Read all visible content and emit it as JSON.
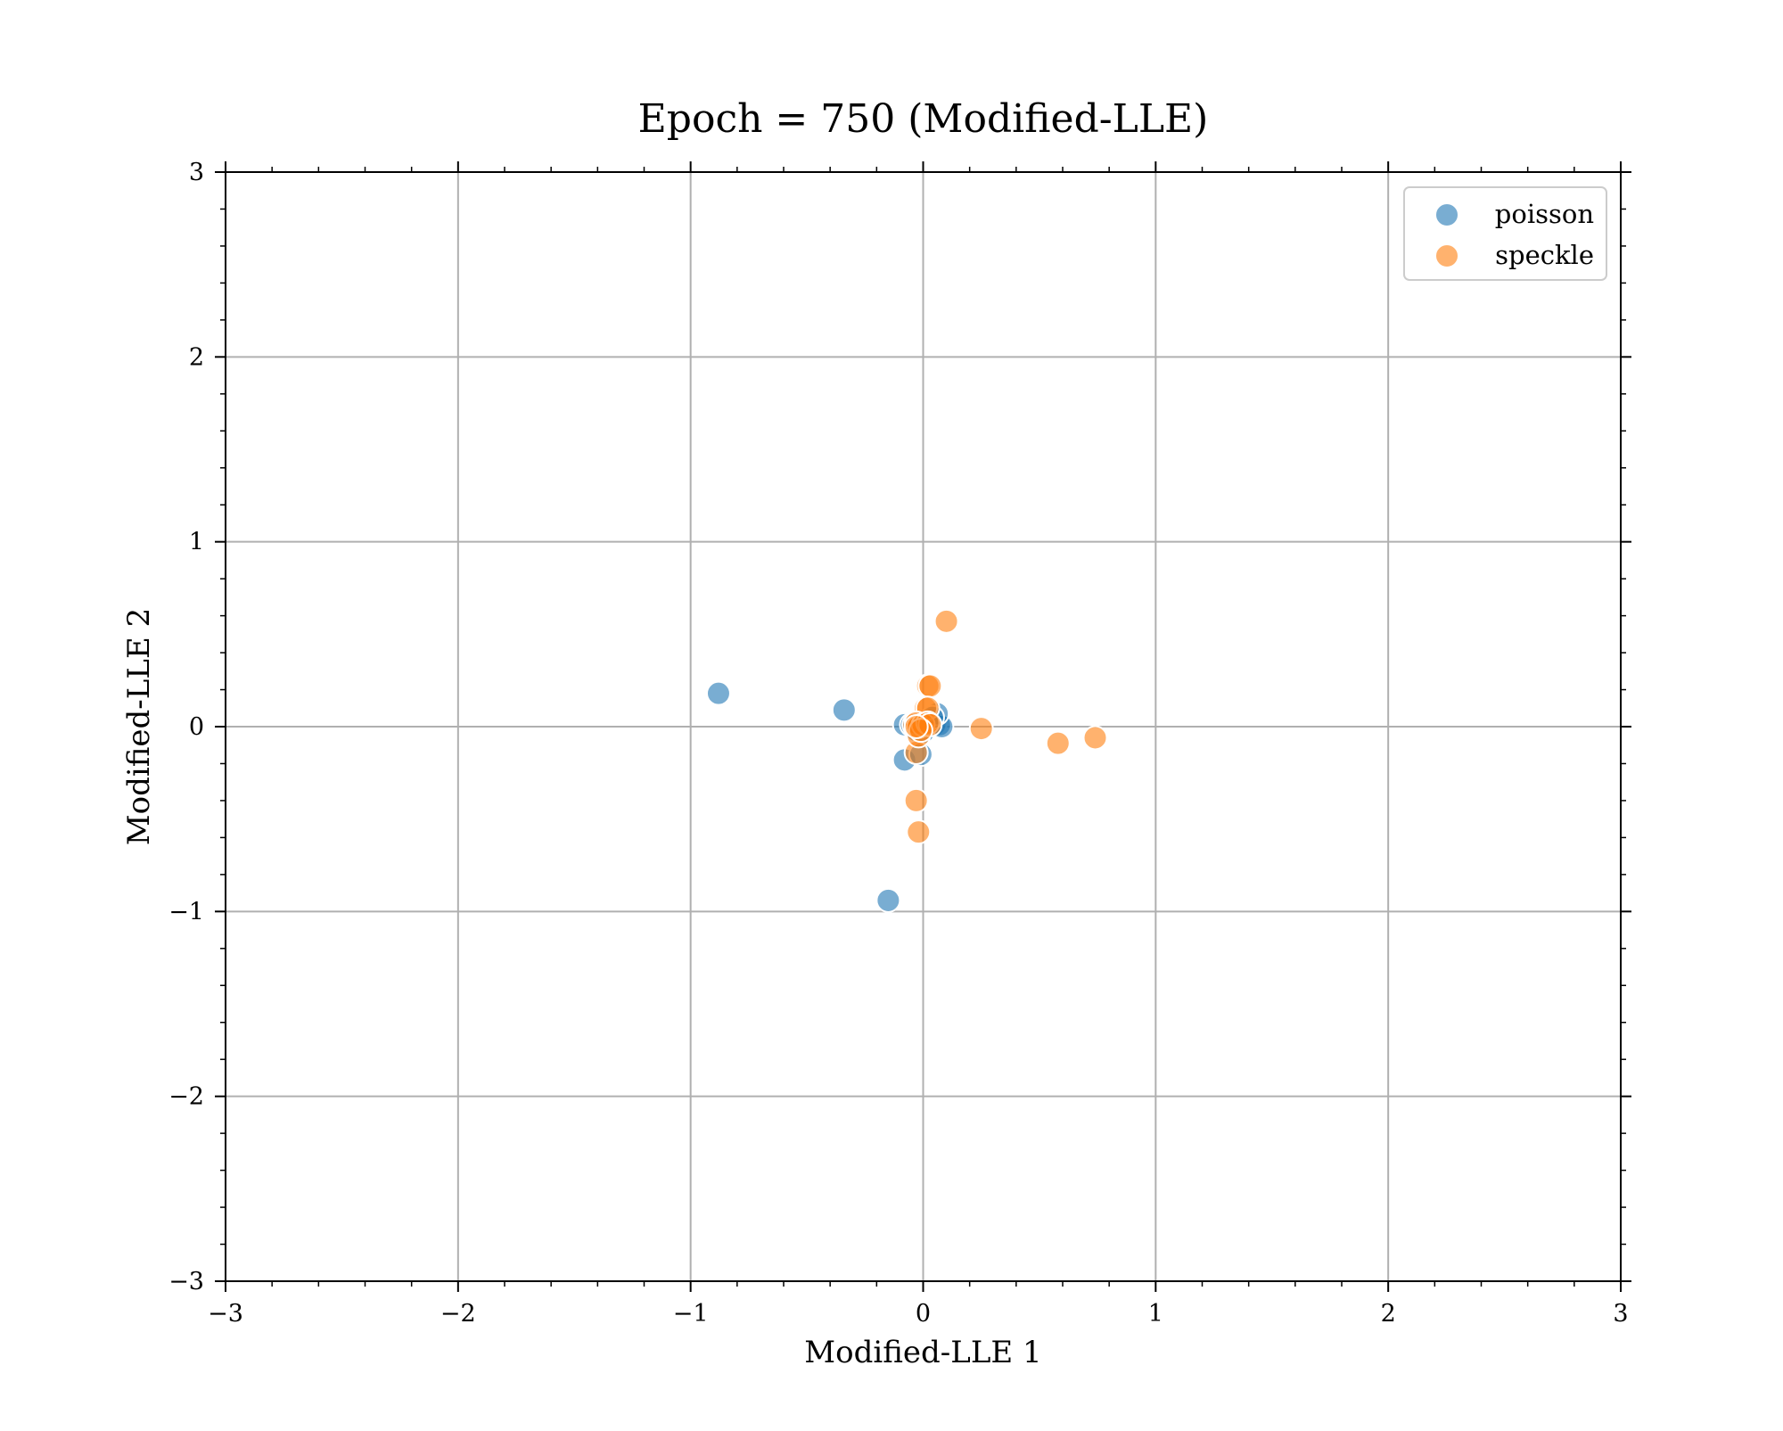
{
  "chart_data": {
    "type": "scatter",
    "title": "Epoch = 750 (Modified-LLE)",
    "xlabel": "Modified-LLE 1",
    "ylabel": "Modified-LLE 2",
    "xlim": [
      -3,
      3
    ],
    "ylim": [
      -3,
      3
    ],
    "xticks": [
      -3,
      -2,
      -1,
      0,
      1,
      2,
      3
    ],
    "yticks": [
      -3,
      -2,
      -1,
      0,
      1,
      2,
      3
    ],
    "xtick_labels": [
      "−3",
      "−2",
      "−1",
      "0",
      "1",
      "2",
      "3"
    ],
    "ytick_labels": [
      "−3",
      "−2",
      "−1",
      "0",
      "1",
      "2",
      "3"
    ],
    "grid": true,
    "legend_position": "top-right",
    "series": [
      {
        "name": "poisson",
        "color": "#1f77b4",
        "points": [
          [
            -0.88,
            0.18
          ],
          [
            -0.34,
            0.09
          ],
          [
            -0.15,
            -0.94
          ],
          [
            -0.08,
            -0.18
          ],
          [
            -0.01,
            -0.15
          ],
          [
            -0.08,
            0.01
          ],
          [
            -0.05,
            0.01
          ],
          [
            -0.02,
            0.02
          ],
          [
            0.02,
            0.01
          ],
          [
            0.05,
            0.01
          ],
          [
            0.07,
            0.01
          ],
          [
            0.08,
            0.0
          ],
          [
            0.06,
            0.07
          ],
          [
            0.04,
            0.05
          ],
          [
            -0.03,
            -0.02
          ],
          [
            0.0,
            -0.03
          ]
        ]
      },
      {
        "name": "speckle",
        "color": "#ff7f0e",
        "points": [
          [
            0.1,
            0.57
          ],
          [
            0.02,
            0.22
          ],
          [
            0.03,
            0.22
          ],
          [
            0.01,
            0.1
          ],
          [
            0.02,
            0.1
          ],
          [
            0.25,
            -0.01
          ],
          [
            0.58,
            -0.09
          ],
          [
            0.74,
            -0.06
          ],
          [
            -0.03,
            -0.4
          ],
          [
            -0.02,
            -0.57
          ],
          [
            -0.03,
            -0.14
          ],
          [
            -0.02,
            -0.05
          ],
          [
            -0.04,
            0.01
          ],
          [
            -0.03,
            0.02
          ],
          [
            -0.02,
            0.0
          ],
          [
            0.0,
            0.01
          ],
          [
            0.02,
            0.02
          ],
          [
            0.03,
            0.01
          ],
          [
            -0.01,
            -0.02
          ],
          [
            -0.03,
            0.0
          ]
        ]
      }
    ]
  }
}
